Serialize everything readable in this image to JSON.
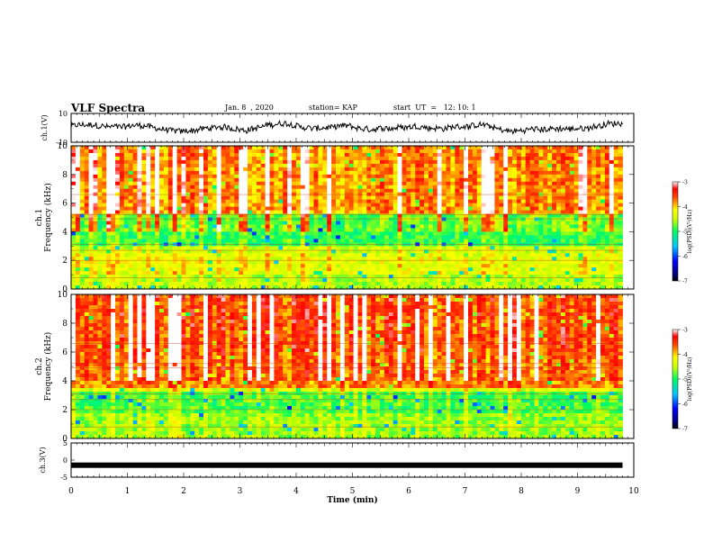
{
  "header": {
    "title": "VLF Spectra",
    "date": "Jan. 8  , 2020",
    "station": "station= KAP",
    "start": "start  UT  =   12: 10: 1"
  },
  "chart_data": [
    {
      "type": "line",
      "panel": "ch1-waveform",
      "ylabel": "ch.1(V)",
      "ylim": [
        -10,
        10
      ],
      "yticks": [
        "10",
        "-10"
      ],
      "xlim": [
        0,
        10
      ],
      "series_color": "#000000",
      "description_values": "noisy voltage trace fluctuating roughly between -6 and +6 V over 0-9.8 min"
    },
    {
      "type": "heatmap",
      "panel": "ch1-spectrogram",
      "ylabel": "ch.1\nFrequency (kHz)",
      "ylabel_lines": [
        "ch.1",
        "Frequency  (kHz)"
      ],
      "ylim": [
        0,
        10
      ],
      "yticks": [
        "0",
        "2",
        "4",
        "6",
        "8",
        "10"
      ],
      "xlim": [
        0,
        10
      ],
      "data_end_min": 9.8,
      "colorbar": {
        "label": "log(PSD)(V²/Hz)",
        "ticks": [
          "-3",
          "-4",
          "-5",
          "-6",
          "-7"
        ],
        "range": [
          -7,
          -3
        ]
      }
    },
    {
      "type": "heatmap",
      "panel": "ch2-spectrogram",
      "ylabel_lines": [
        "ch.2",
        "Frequency  (kHz)"
      ],
      "ylim": [
        0,
        10
      ],
      "yticks": [
        "0",
        "2",
        "4",
        "6",
        "8",
        "10"
      ],
      "xlim": [
        0,
        10
      ],
      "data_end_min": 9.8,
      "colorbar": {
        "label": "log(PSD)(V²/Hz)",
        "ticks": [
          "-3",
          "-4",
          "-5",
          "-6",
          "-7"
        ],
        "range": [
          -7,
          -3
        ]
      }
    },
    {
      "type": "line",
      "panel": "ch3-waveform",
      "ylabel": "ch.3(V)",
      "ylim": [
        -5,
        5
      ],
      "yticks": [
        "5",
        "0",
        "-5"
      ],
      "xlim": [
        0,
        10
      ],
      "constant_level": -1.5,
      "xlabel": "Time  (min)",
      "xticks": [
        "0",
        "1",
        "2",
        "3",
        "4",
        "5",
        "6",
        "7",
        "8",
        "9",
        "10"
      ]
    }
  ]
}
